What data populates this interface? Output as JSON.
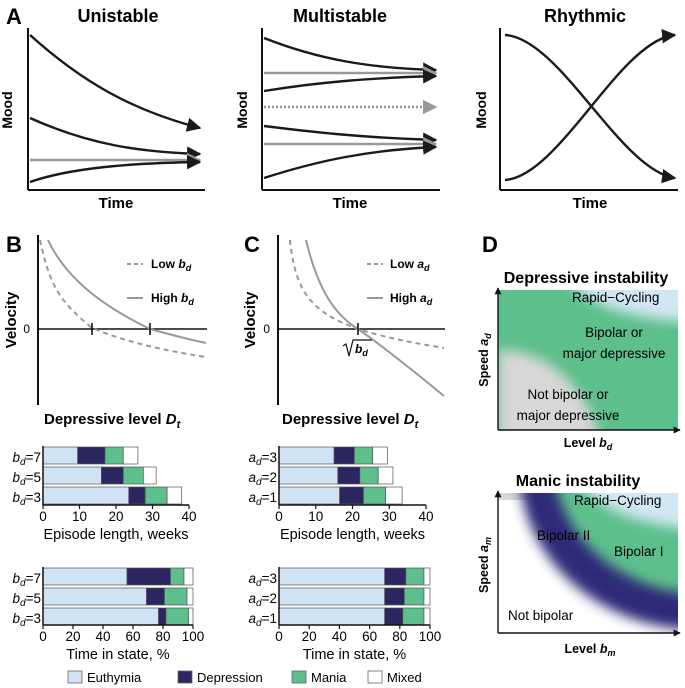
{
  "figure": {
    "panel_letters": [
      "A",
      "B",
      "C",
      "D"
    ],
    "legend": {
      "items": [
        {
          "label": "Euthymia",
          "color": "#cfe3f4"
        },
        {
          "label": "Depression",
          "color": "#2b2560"
        },
        {
          "label": "Mania",
          "color": "#5dbf8c"
        },
        {
          "label": "Mixed",
          "color": "#ffffff"
        }
      ]
    }
  },
  "colors": {
    "line_dark": "#1a1a1a",
    "line_gray": "#999999",
    "euthymia": "#cfe3f4",
    "depression": "#2b2560",
    "mania": "#5dbf8c",
    "mixed": "#ffffff",
    "region_gray": "#d7d7d7",
    "region_green": "#5dbf8c",
    "region_blue": "#d3e6f4",
    "region_navy": "#2e2a78"
  },
  "chart_data": [
    {
      "id": "A-unistable",
      "type": "line",
      "title": "Unistable",
      "xlabel": "Time",
      "ylabel": "Mood",
      "series": [
        {
          "name": "high start",
          "style": "dark",
          "x": [
            0,
            1
          ],
          "y": [
            0.93,
            0.37
          ]
        },
        {
          "name": "mid start",
          "style": "dark",
          "x": [
            0,
            1
          ],
          "y": [
            0.63,
            0.37
          ]
        },
        {
          "name": "equilibrium",
          "style": "gray",
          "x": [
            0,
            1
          ],
          "y": [
            0.35,
            0.35
          ]
        },
        {
          "name": "low start",
          "style": "dark",
          "x": [
            0,
            1
          ],
          "y": [
            0.12,
            0.33
          ]
        }
      ]
    },
    {
      "id": "A-multistable",
      "type": "line",
      "title": "Multistable",
      "xlabel": "Time",
      "ylabel": "Mood",
      "series": [
        {
          "name": "top start",
          "style": "dark",
          "x": [
            0,
            1
          ],
          "y": [
            0.93,
            0.78
          ]
        },
        {
          "name": "upper equilibrium",
          "style": "gray",
          "x": [
            0,
            1
          ],
          "y": [
            0.76,
            0.76
          ]
        },
        {
          "name": "upper-mid start",
          "style": "dark",
          "x": [
            0,
            1
          ],
          "y": [
            0.63,
            0.74
          ]
        },
        {
          "name": "unstable equilibrium",
          "style": "gray-dotted",
          "x": [
            0,
            1
          ],
          "y": [
            0.56,
            0.56
          ]
        },
        {
          "name": "lower-mid start",
          "style": "dark",
          "x": [
            0,
            1
          ],
          "y": [
            0.43,
            0.35
          ]
        },
        {
          "name": "lower equilibrium",
          "style": "gray",
          "x": [
            0,
            1
          ],
          "y": [
            0.33,
            0.33
          ]
        },
        {
          "name": "bottom start",
          "style": "dark",
          "x": [
            0,
            1
          ],
          "y": [
            0.12,
            0.31
          ]
        }
      ]
    },
    {
      "id": "A-rhythmic",
      "type": "line",
      "title": "Rhythmic",
      "xlabel": "Time",
      "ylabel": "Mood",
      "series": [
        {
          "name": "falling",
          "style": "dark",
          "x": [
            0,
            1
          ],
          "y": [
            0.9,
            0.12
          ]
        },
        {
          "name": "rising",
          "style": "dark",
          "x": [
            0,
            1
          ],
          "y": [
            0.12,
            0.9
          ]
        }
      ]
    },
    {
      "id": "B-velocity",
      "type": "line",
      "xlabel": "Depressive level",
      "xlabel_var": "D",
      "xlabel_sub": "t",
      "ylabel": "Velocity",
      "zero_label": "0",
      "series": [
        {
          "name": "Low",
          "param": "b",
          "param_sub": "d",
          "style": "gray-dashed",
          "root": 0.55
        },
        {
          "name": "High",
          "param": "b",
          "param_sub": "d",
          "style": "gray",
          "root": 1.05
        }
      ]
    },
    {
      "id": "C-velocity",
      "type": "line",
      "xlabel": "Depressive level",
      "xlabel_var": "D",
      "xlabel_sub": "t",
      "ylabel": "Velocity",
      "zero_label": "0",
      "root_label_var": "b",
      "root_label_sub": "d",
      "series": [
        {
          "name": "Low",
          "param": "a",
          "param_sub": "d",
          "style": "gray-dashed",
          "root": 1.0
        },
        {
          "name": "High",
          "param": "a",
          "param_sub": "d",
          "style": "gray",
          "root": 1.0
        }
      ]
    },
    {
      "id": "B-episode",
      "type": "bar",
      "orientation": "horizontal-stacked",
      "xlabel": "Episode length, weeks",
      "xlim": [
        0,
        40
      ],
      "xticks": [
        "0",
        "10",
        "20",
        "30",
        "40"
      ],
      "param": "b",
      "param_sub": "d",
      "rows": [
        {
          "label": "=7",
          "euthymia": 9.5,
          "depression": 7.5,
          "mania": 5,
          "mixed": 4
        },
        {
          "label": "=5",
          "euthymia": 16,
          "depression": 6,
          "mania": 5.5,
          "mixed": 3.5
        },
        {
          "label": "=3",
          "euthymia": 23.5,
          "depression": 4.5,
          "mania": 6,
          "mixed": 4
        }
      ]
    },
    {
      "id": "C-episode",
      "type": "bar",
      "orientation": "horizontal-stacked",
      "xlabel": "Episode length, weeks",
      "xlim": [
        0,
        40
      ],
      "xticks": [
        "0",
        "10",
        "20",
        "30",
        "40"
      ],
      "param": "a",
      "param_sub": "d",
      "rows": [
        {
          "label": "=3",
          "euthymia": 15,
          "depression": 5.5,
          "mania": 5,
          "mixed": 4
        },
        {
          "label": "=2",
          "euthymia": 16,
          "depression": 6,
          "mania": 5,
          "mixed": 4
        },
        {
          "label": "=1",
          "euthymia": 16.5,
          "depression": 6.5,
          "mania": 6,
          "mixed": 4.5
        }
      ]
    },
    {
      "id": "B-time",
      "type": "bar",
      "orientation": "horizontal-stacked",
      "xlabel": "Time in state, %",
      "xlim": [
        0,
        100
      ],
      "xticks": [
        "0",
        "20",
        "40",
        "60",
        "80",
        "100"
      ],
      "param": "b",
      "param_sub": "d",
      "rows": [
        {
          "label": "=7",
          "euthymia": 56,
          "depression": 29,
          "mania": 9,
          "mixed": 6
        },
        {
          "label": "=5",
          "euthymia": 69,
          "depression": 12,
          "mania": 15,
          "mixed": 4
        },
        {
          "label": "=3",
          "euthymia": 77,
          "depression": 5,
          "mania": 15,
          "mixed": 3
        }
      ]
    },
    {
      "id": "C-time",
      "type": "bar",
      "orientation": "horizontal-stacked",
      "xlabel": "Time in state, %",
      "xlim": [
        0,
        100
      ],
      "xticks": [
        "0",
        "20",
        "40",
        "60",
        "80",
        "100"
      ],
      "param": "a",
      "param_sub": "d",
      "rows": [
        {
          "label": "=3",
          "euthymia": 70,
          "depression": 14,
          "mania": 12,
          "mixed": 4
        },
        {
          "label": "=2",
          "euthymia": 70,
          "depression": 13,
          "mania": 13,
          "mixed": 4
        },
        {
          "label": "=1",
          "euthymia": 70,
          "depression": 12,
          "mania": 14,
          "mixed": 4
        }
      ]
    },
    {
      "id": "D-depressive",
      "type": "heatmap",
      "title": "Depressive instability",
      "xlabel": "Level",
      "xlabel_var": "b",
      "xlabel_sub": "d",
      "ylabel": "Speed",
      "ylabel_var": "a",
      "ylabel_sub": "d",
      "regions": [
        "Rapid−Cycling",
        "Bipolar or",
        "major depressive",
        "Not bipolar or",
        "major depressive"
      ]
    },
    {
      "id": "D-manic",
      "type": "heatmap",
      "title": "Manic instability",
      "xlabel": "Level",
      "xlabel_var": "b",
      "xlabel_sub": "m",
      "ylabel": "Speed",
      "ylabel_var": "a",
      "ylabel_sub": "m",
      "regions": [
        "Rapid−Cycling",
        "Bipolar II",
        "Bipolar I",
        "Not bipolar"
      ]
    }
  ]
}
